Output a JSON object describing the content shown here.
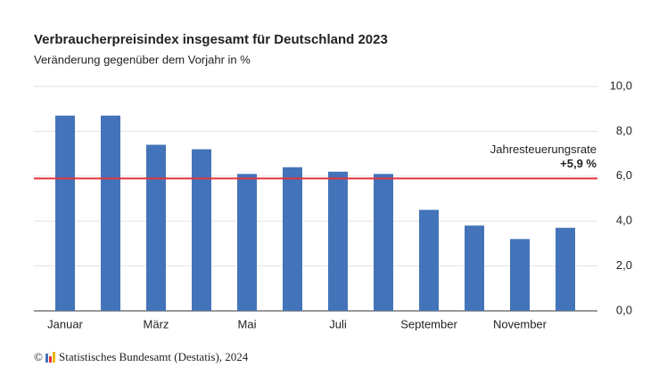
{
  "chart_data": {
    "type": "bar",
    "title": "Verbraucherpreisindex insgesamt für Deutschland 2023",
    "subtitle": "Veränderung gegenüber dem Vorjahr in %",
    "categories": [
      "Januar",
      null,
      "März",
      null,
      "Mai",
      null,
      "Juli",
      null,
      "September",
      null,
      "November",
      null
    ],
    "values": [
      8.7,
      8.7,
      7.4,
      7.2,
      6.1,
      6.4,
      6.2,
      6.1,
      4.5,
      3.8,
      3.2,
      3.7
    ],
    "color": "#4374b9",
    "ylim": [
      0,
      10
    ],
    "yticks": [
      {
        "value": 0,
        "label": "0,0"
      },
      {
        "value": 2,
        "label": "2,0"
      },
      {
        "value": 4,
        "label": "4,0"
      },
      {
        "value": 6,
        "label": "6,0"
      },
      {
        "value": 8,
        "label": "8,0"
      },
      {
        "value": 10,
        "label": "10,0"
      }
    ],
    "grid": true,
    "reference_line": {
      "value": 5.9,
      "label": "Jahresteuerungsrate",
      "value_label": "+5,9 %",
      "color": "#e8333a"
    },
    "copyright": "©",
    "source": "Statistisches Bundesamt (Destatis), 2024"
  }
}
